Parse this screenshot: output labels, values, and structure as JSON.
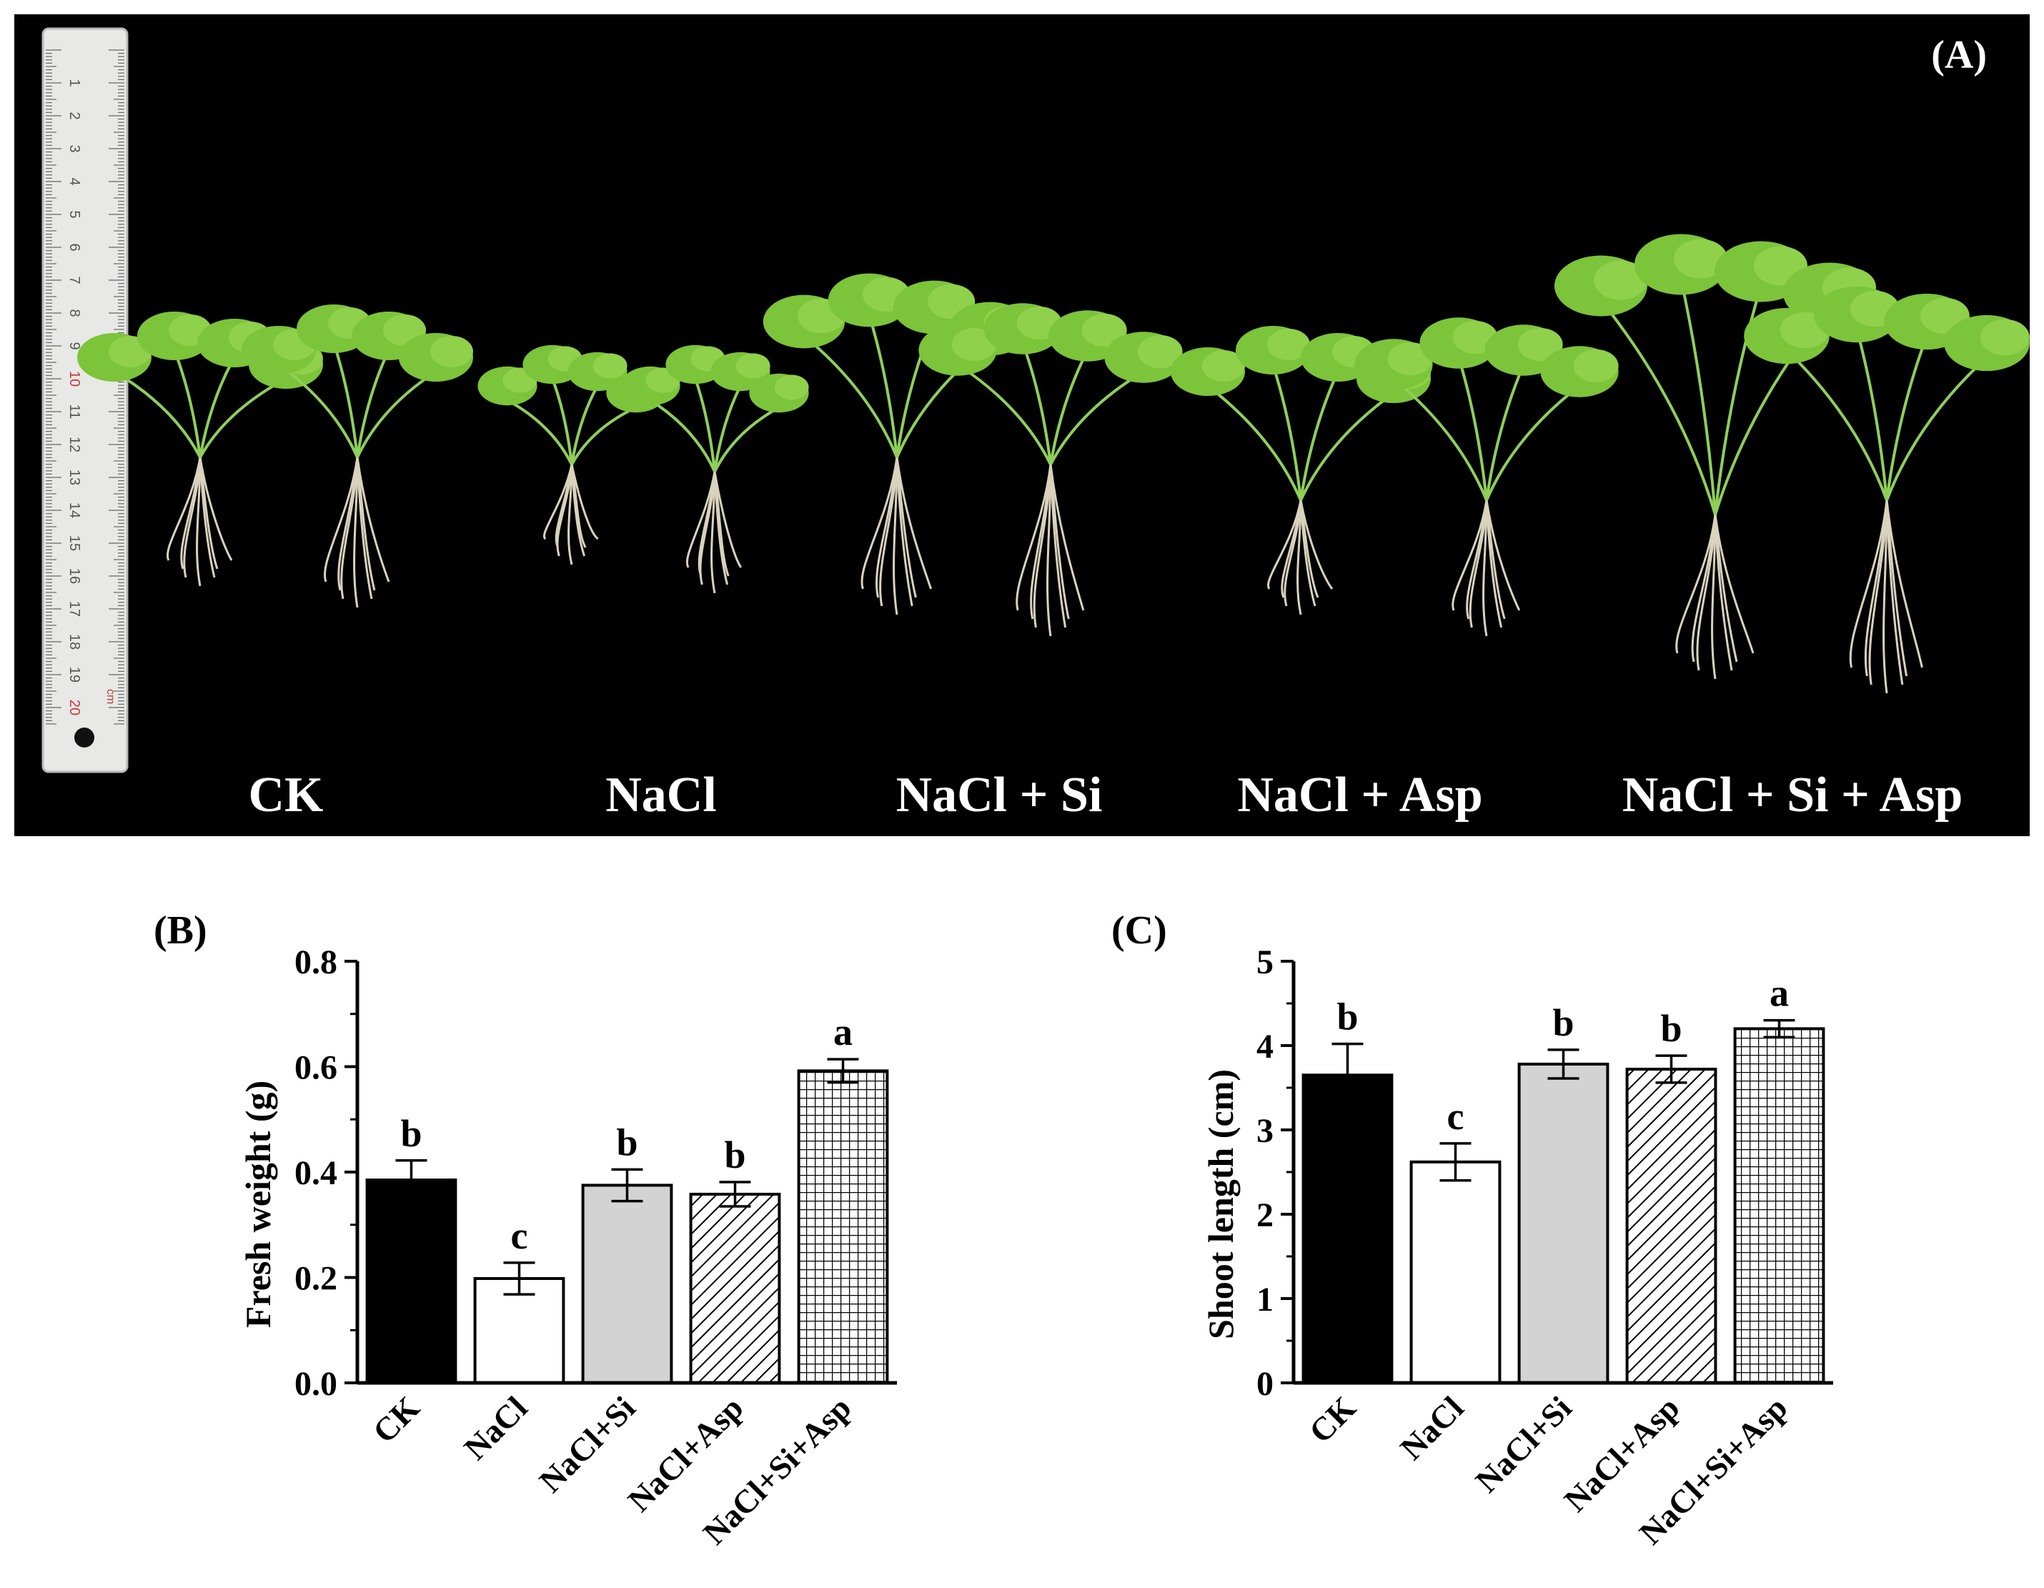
{
  "panel_a": {
    "label": "(A)",
    "ruler_numbers": [
      "1",
      "2",
      "3",
      "4",
      "5",
      "6",
      "7",
      "8",
      "9",
      "10",
      "11",
      "12",
      "13",
      "14",
      "15",
      "16",
      "17",
      "18",
      "19",
      "20"
    ],
    "ruler_unit": "cm",
    "treatments": [
      "CK",
      "NaCl",
      "NaCl + Si",
      "NaCl + Asp",
      "NaCl + Si + Asp"
    ]
  },
  "chart_data": [
    {
      "type": "bar",
      "panel_label": "(B)",
      "title": "",
      "xlabel": "",
      "ylabel": "Fresh weight (g)",
      "categories": [
        "CK",
        "NaCl",
        "NaCl+Si",
        "NaCl+Asp",
        "NaCl+Si+Asp"
      ],
      "values": [
        0.385,
        0.198,
        0.375,
        0.358,
        0.592
      ],
      "errors": [
        0.037,
        0.03,
        0.03,
        0.023,
        0.022
      ],
      "significance": [
        "b",
        "c",
        "b",
        "b",
        "a"
      ],
      "fills": [
        "solid-black",
        "white",
        "light-gray",
        "diagonal-hatch",
        "grid-hatch"
      ],
      "ylim": [
        0,
        0.8
      ],
      "yticks": [
        "0.0",
        "0.2",
        "0.4",
        "0.6",
        "0.8"
      ],
      "grid": false
    },
    {
      "type": "bar",
      "panel_label": "(C)",
      "title": "",
      "xlabel": "",
      "ylabel": "Shoot length (cm)",
      "categories": [
        "CK",
        "NaCl",
        "NaCl+Si",
        "NaCl+Asp",
        "NaCl+Si+Asp"
      ],
      "values": [
        3.65,
        2.62,
        3.78,
        3.72,
        4.2
      ],
      "errors": [
        0.37,
        0.22,
        0.17,
        0.16,
        0.1
      ],
      "significance": [
        "b",
        "c",
        "b",
        "b",
        "a"
      ],
      "fills": [
        "solid-black",
        "white",
        "light-gray",
        "diagonal-hatch",
        "grid-hatch"
      ],
      "ylim": [
        0,
        5
      ],
      "yticks": [
        "0",
        "1",
        "2",
        "3",
        "4",
        "5"
      ],
      "grid": false
    }
  ],
  "colors": {
    "photo_background": "#000000",
    "bar_black": "#000000",
    "bar_gray": "#d3d3d3",
    "bar_white": "#ffffff",
    "leaf_green": "#7cc43a",
    "root": "#d9d2bd"
  }
}
